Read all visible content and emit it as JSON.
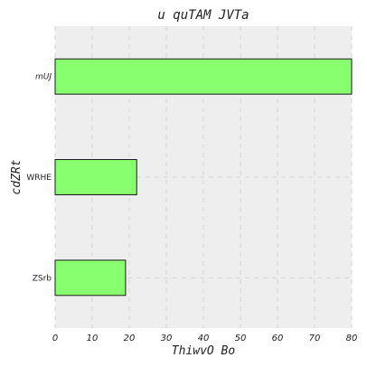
{
  "chart_data": {
    "type": "bar",
    "orientation": "horizontal",
    "title": "u quTAM JVTa",
    "xlabel": "ThiwvO Bo",
    "ylabel": "cdZRt",
    "categories": [
      "mUJ",
      "WRHE",
      "ZSrb"
    ],
    "values": [
      80,
      22,
      19
    ],
    "xlim": [
      0,
      80
    ],
    "xticks": [
      0,
      10,
      20,
      30,
      40,
      50,
      60,
      70,
      80
    ],
    "grid": true,
    "colors": {
      "bar_fill": "#88ff6e",
      "bar_edge": "#1a1a1a",
      "plot_background": "#eeeeee"
    }
  }
}
